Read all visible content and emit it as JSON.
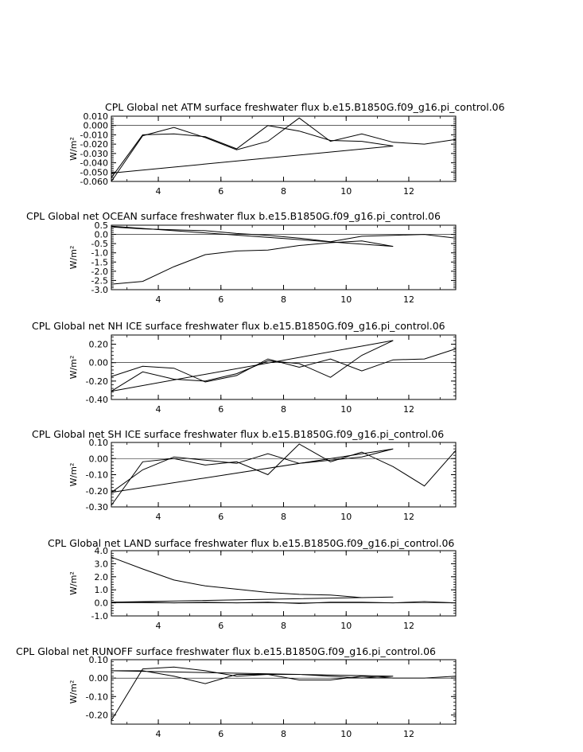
{
  "chart_data": [
    {
      "type": "line",
      "title": "CPL Global net ATM surface freshwater flux b.e15.B1850G.f09_g16.pi_control.06",
      "ylabel": "W/m²",
      "xlabel": "",
      "xlim": [
        2.5,
        13.5
      ],
      "ylim": [
        -0.06,
        0.01
      ],
      "x_ticks": [
        "4",
        "6",
        "8",
        "10",
        "12"
      ],
      "y_ticks": [
        "0.010",
        "0.000",
        "-0.010",
        "-0.020",
        "-0.030",
        "-0.040",
        "-0.050",
        "-0.060"
      ],
      "zero_line": true,
      "series": [
        {
          "x": [
            2.5,
            3.5,
            4.5,
            5.5,
            6.5,
            7.5,
            8.5,
            9.5,
            10.5,
            11.5,
            12.5,
            13.5
          ],
          "y": [
            -0.06,
            -0.011,
            -0.002,
            -0.013,
            -0.026,
            -0.017,
            0.008,
            -0.017,
            -0.009,
            -0.018,
            -0.02,
            -0.015
          ]
        },
        {
          "x": [
            2.5,
            3.5,
            4.5,
            5.5,
            6.5,
            7.5,
            8.5,
            9.5,
            10.5,
            11.5,
            2.5
          ],
          "y": [
            -0.056,
            -0.01,
            -0.009,
            -0.012,
            -0.025,
            0.0,
            -0.006,
            -0.016,
            -0.017,
            -0.022,
            -0.051
          ]
        }
      ]
    },
    {
      "type": "line",
      "title": "CPL Global net OCEAN surface freshwater flux b.e15.B1850G.f09_g16.pi_control.06",
      "ylabel": "W/m²",
      "xlabel": "",
      "xlim": [
        2.5,
        13.5
      ],
      "ylim": [
        -3.0,
        0.5
      ],
      "x_ticks": [
        "4",
        "6",
        "8",
        "10",
        "12"
      ],
      "y_ticks": [
        "0.5",
        "0.0",
        "-0.5",
        "-1.0",
        "-1.5",
        "-2.0",
        "-2.5",
        "-3.0"
      ],
      "zero_line": true,
      "series": [
        {
          "x": [
            2.5,
            3.5,
            4.5,
            5.5,
            6.5,
            7.5,
            8.5,
            9.5,
            10.5,
            11.5,
            12.5,
            13.5
          ],
          "y": [
            0.4,
            0.3,
            0.25,
            0.2,
            0.05,
            -0.05,
            -0.2,
            -0.4,
            -0.1,
            -0.05,
            0.0,
            -0.2
          ]
        },
        {
          "x": [
            2.5,
            3.5,
            4.5,
            5.5,
            6.5,
            7.5,
            8.5,
            9.5,
            10.5,
            11.5,
            2.5
          ],
          "y": [
            -2.7,
            -2.55,
            -1.75,
            -1.1,
            -0.9,
            -0.85,
            -0.6,
            -0.45,
            -0.35,
            -0.65,
            0.45
          ]
        }
      ]
    },
    {
      "type": "line",
      "title": "CPL Global net NH ICE surface freshwater flux b.e15.B1850G.f09_g16.pi_control.06",
      "ylabel": "W/m²",
      "xlabel": "",
      "xlim": [
        2.5,
        13.5
      ],
      "ylim": [
        -0.4,
        0.3
      ],
      "x_ticks": [
        "4",
        "6",
        "8",
        "10",
        "12"
      ],
      "y_ticks": [
        "0.20",
        "0.00",
        "-0.20",
        "-0.40"
      ],
      "zero_line": true,
      "series": [
        {
          "x": [
            2.5,
            3.5,
            4.5,
            5.5,
            6.5,
            7.5,
            8.5,
            9.5,
            10.5,
            11.5,
            12.5,
            13.5
          ],
          "y": [
            -0.15,
            -0.04,
            -0.06,
            -0.21,
            -0.14,
            0.04,
            -0.05,
            0.04,
            -0.09,
            0.03,
            0.04,
            0.15
          ]
        },
        {
          "x": [
            2.5,
            3.5,
            4.5,
            5.5,
            6.5,
            7.5,
            8.5,
            9.5,
            10.5,
            11.5,
            2.5
          ],
          "y": [
            -0.31,
            -0.1,
            -0.18,
            -0.2,
            -0.12,
            0.02,
            -0.01,
            -0.16,
            0.08,
            0.24,
            -0.31
          ]
        }
      ]
    },
    {
      "type": "line",
      "title": "CPL Global net SH ICE surface freshwater flux b.e15.B1850G.f09_g16.pi_control.06",
      "ylabel": "W/m²",
      "xlabel": "",
      "xlim": [
        2.5,
        13.5
      ],
      "ylim": [
        -0.3,
        0.1
      ],
      "x_ticks": [
        "4",
        "6",
        "8",
        "10",
        "12"
      ],
      "y_ticks": [
        "0.10",
        "0.00",
        "-0.10",
        "-0.20",
        "-0.30"
      ],
      "zero_line": true,
      "series": [
        {
          "x": [
            2.5,
            3.5,
            4.5,
            5.5,
            6.5,
            7.5,
            8.5,
            9.5,
            10.5,
            11.5,
            12.5,
            13.5
          ],
          "y": [
            -0.29,
            -0.02,
            0.0,
            -0.04,
            -0.02,
            -0.1,
            0.09,
            -0.02,
            0.04,
            -0.05,
            -0.17,
            0.05
          ]
        },
        {
          "x": [
            2.5,
            3.5,
            4.5,
            5.5,
            6.5,
            7.5,
            8.5,
            9.5,
            10.5,
            11.5,
            2.5
          ],
          "y": [
            -0.21,
            -0.07,
            0.01,
            -0.01,
            -0.03,
            0.03,
            -0.03,
            -0.01,
            0.01,
            0.06,
            -0.21
          ]
        }
      ]
    },
    {
      "type": "line",
      "title": "CPL Global net LAND surface freshwater flux b.e15.B1850G.f09_g16.pi_control.06",
      "ylabel": "W/m²",
      "xlabel": "",
      "xlim": [
        2.5,
        13.5
      ],
      "ylim": [
        -1.0,
        4.0
      ],
      "x_ticks": [
        "4",
        "6",
        "8",
        "10",
        "12"
      ],
      "y_ticks": [
        "4.0",
        "3.0",
        "2.0",
        "1.0",
        "0.0",
        "-1.0"
      ],
      "zero_line": true,
      "series": [
        {
          "x": [
            2.5,
            3.5,
            4.5,
            5.5,
            6.5,
            7.5,
            8.5,
            9.5,
            10.5,
            11.5,
            12.5,
            13.5
          ],
          "y": [
            0.05,
            0.05,
            0.0,
            0.05,
            0.0,
            0.05,
            -0.05,
            0.05,
            0.05,
            0.0,
            0.1,
            0.0
          ]
        },
        {
          "x": [
            2.5,
            3.5,
            4.5,
            5.5,
            6.5,
            7.5,
            8.5,
            9.5,
            10.5,
            11.5,
            2.5
          ],
          "y": [
            3.5,
            2.6,
            1.75,
            1.3,
            1.05,
            0.8,
            0.65,
            0.6,
            0.4,
            0.45,
            0.05
          ]
        }
      ]
    },
    {
      "type": "line",
      "title": "CPL Global net RUNOFF surface freshwater flux b.e15.B1850G.f09_g16.pi_control.06",
      "ylabel": "W/m²",
      "xlabel": "",
      "xlim": [
        2.5,
        13.5
      ],
      "ylim": [
        -0.25,
        0.1
      ],
      "x_ticks": [
        "4",
        "6",
        "8",
        "10",
        "12"
      ],
      "y_ticks": [
        "0.10",
        "0.00",
        "-0.10",
        "-0.20"
      ],
      "zero_line": true,
      "series": [
        {
          "x": [
            2.5,
            3.5,
            4.5,
            5.5,
            6.5,
            7.5,
            8.5,
            9.5,
            10.5,
            11.5,
            12.5,
            13.5
          ],
          "y": [
            -0.23,
            0.05,
            0.06,
            0.04,
            0.01,
            0.02,
            -0.01,
            -0.01,
            0.01,
            0.0,
            0.0,
            0.01
          ]
        },
        {
          "x": [
            2.5,
            3.5,
            4.5,
            5.5,
            6.5,
            7.5,
            8.5,
            9.5,
            10.5,
            11.5,
            2.5
          ],
          "y": [
            0.04,
            0.04,
            0.01,
            -0.03,
            0.02,
            0.02,
            0.02,
            0.01,
            0.0,
            0.01,
            0.04
          ]
        }
      ]
    }
  ]
}
